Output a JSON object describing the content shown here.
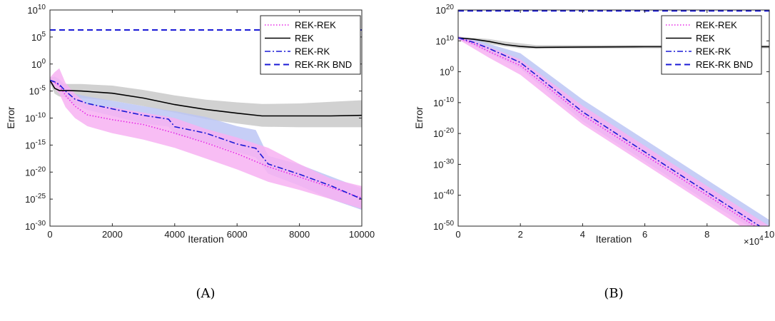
{
  "chart_data": [
    {
      "panel": "(A)",
      "type": "line",
      "xlabel": "Iteration",
      "ylabel": "Error",
      "yscale": "log",
      "xlim": [
        0,
        10000
      ],
      "ylim_exp": [
        -30,
        10
      ],
      "xticks": [
        0,
        2000,
        4000,
        6000,
        8000,
        10000
      ],
      "xtick_labels": [
        "0",
        "2000",
        "4000",
        "6000",
        "8000",
        "10000"
      ],
      "ytick_exps": [
        -30,
        -25,
        -20,
        -15,
        -10,
        -5,
        0,
        5,
        10
      ],
      "legend_position": "top-right",
      "series": [
        {
          "name": "REK-REK",
          "color": "#e627e6",
          "dash": "dotted",
          "band_color": "#f7b2f2",
          "x": [
            0,
            150,
            300,
            500,
            800,
            1200,
            2000,
            3000,
            4000,
            5000,
            6000,
            7000,
            8000,
            9000,
            10000
          ],
          "log10": [
            -3,
            -3.4,
            -4,
            -5.8,
            -7.8,
            -9.4,
            -10.3,
            -11.2,
            -12.8,
            -14.6,
            -16.6,
            -19,
            -20.9,
            -22.8,
            -24.8
          ],
          "band_lo": [
            -3.5,
            -4.5,
            -5.5,
            -8,
            -10,
            -11.5,
            -12.8,
            -14,
            -15.5,
            -17.5,
            -19.5,
            -21.8,
            -23.3,
            -25,
            -26.8
          ],
          "band_hi": [
            -2.5,
            -1.5,
            -0.8,
            -3.5,
            -5.5,
            -7.5,
            -8,
            -9,
            -10,
            -12,
            -13.6,
            -15.5,
            -18.5,
            -21.2,
            -22.6
          ]
        },
        {
          "name": "REK",
          "color": "#000000",
          "dash": "solid",
          "band_color": "#c9c9c9",
          "x": [
            0,
            150,
            300,
            600,
            1000,
            2000,
            3000,
            4000,
            5000,
            6000,
            6800,
            8000,
            9000,
            10000
          ],
          "log10": [
            -3,
            -4.5,
            -4.9,
            -4.9,
            -5,
            -5.4,
            -6.3,
            -7.5,
            -8.4,
            -9.1,
            -9.6,
            -9.6,
            -9.6,
            -9.5
          ],
          "band_lo": [
            -3.5,
            -5.5,
            -6,
            -6.2,
            -6.3,
            -6.8,
            -7.8,
            -9,
            -10.2,
            -11,
            -11.6,
            -11.7,
            -11.7,
            -11.7
          ],
          "band_hi": [
            -2.5,
            -3.5,
            -3.7,
            -3.7,
            -3.7,
            -4,
            -4.8,
            -5.8,
            -6.6,
            -7.1,
            -7.4,
            -7.3,
            -7,
            -6.7
          ]
        },
        {
          "name": "REK-RK",
          "color": "#1a1ad6",
          "dash": "dashdot",
          "band_color": "#bcc6f5",
          "x": [
            0,
            150,
            300,
            500,
            800,
            1200,
            2000,
            3000,
            3800,
            4000,
            5000,
            6000,
            6600,
            7000,
            8000,
            9000,
            10000
          ],
          "log10": [
            -3,
            -3.3,
            -3.8,
            -5,
            -6.5,
            -7.3,
            -8.3,
            -9.5,
            -10.2,
            -11.6,
            -12.8,
            -14.8,
            -15.6,
            -18.5,
            -20.4,
            -22.5,
            -25
          ],
          "band_lo": [
            -3.5,
            -4,
            -4.8,
            -6.2,
            -7.5,
            -8.5,
            -9.6,
            -11,
            -11.6,
            -13,
            -14.5,
            -16.3,
            -17.3,
            -20.3,
            -22.5,
            -25,
            -27
          ],
          "band_hi": [
            -2.5,
            -2.3,
            -2.8,
            -4,
            -5.5,
            -6,
            -6.8,
            -7.8,
            -8.6,
            -8.7,
            -9.8,
            -11.5,
            -12.2,
            -17,
            -18.6,
            -20.8,
            -23
          ]
        },
        {
          "name": "REK-RK BND",
          "color": "#1a1ad6",
          "dash": "dashed",
          "x": [
            0,
            10000
          ],
          "log10": [
            6.3,
            6.3
          ]
        }
      ]
    },
    {
      "panel": "(B)",
      "type": "line",
      "xlabel": "Iteration",
      "ylabel": "Error",
      "yscale": "log",
      "xlim": [
        0,
        10
      ],
      "x_multiplier": "×10",
      "x_multiplier_exp": "4",
      "ylim_exp": [
        -50,
        20
      ],
      "xticks": [
        0,
        2,
        4,
        6,
        8,
        10
      ],
      "xtick_labels": [
        "0",
        "2",
        "4",
        "6",
        "8",
        "10"
      ],
      "ytick_exps": [
        -50,
        -40,
        -30,
        -20,
        -10,
        0,
        10,
        20
      ],
      "legend_position": "top-right",
      "series": [
        {
          "name": "REK-REK",
          "color": "#e627e6",
          "dash": "dotted",
          "band_color": "#f7b2f2",
          "x": [
            0,
            0.5,
            1,
            2,
            4,
            6,
            8,
            10
          ],
          "log10": [
            11,
            9,
            6.5,
            2,
            -14,
            -27,
            -40,
            -53
          ],
          "band_lo": [
            10.5,
            7.5,
            4.5,
            -1,
            -17,
            -30,
            -43,
            -56
          ],
          "band_hi": [
            11.5,
            10,
            8,
            4,
            -11,
            -24,
            -37,
            -50
          ]
        },
        {
          "name": "REK",
          "color": "#000000",
          "dash": "solid",
          "band_color": "#c9c9c9",
          "x": [
            0,
            0.5,
            1,
            1.5,
            2,
            2.5,
            4,
            6,
            8,
            10
          ],
          "log10": [
            11,
            10.5,
            9.8,
            8.8,
            8.2,
            7.9,
            8,
            8.1,
            8.1,
            8.1
          ],
          "band_lo": [
            10.8,
            10,
            9,
            8.2,
            7.6,
            7.4,
            7.5,
            7.6,
            7.6,
            7.6
          ],
          "band_hi": [
            11.2,
            11,
            10.6,
            9.8,
            9.2,
            8.6,
            8.6,
            8.6,
            8.6,
            8.6
          ]
        },
        {
          "name": "REK-RK",
          "color": "#1a1ad6",
          "dash": "dashdot",
          "band_color": "#bcc6f5",
          "x": [
            0,
            0.5,
            1,
            2,
            4,
            6,
            8,
            10
          ],
          "log10": [
            11,
            9.5,
            7.5,
            3,
            -13,
            -26,
            -39,
            -52
          ],
          "band_lo": [
            10.5,
            8.5,
            6,
            1,
            -16,
            -29,
            -42,
            -54
          ],
          "band_hi": [
            11.5,
            10.5,
            9,
            6,
            -9,
            -22,
            -35,
            -48
          ]
        },
        {
          "name": "REK-RK BND",
          "color": "#1a1ad6",
          "dash": "dashed",
          "x": [
            0,
            10
          ],
          "log10": [
            19.7,
            19.7
          ]
        }
      ]
    }
  ]
}
